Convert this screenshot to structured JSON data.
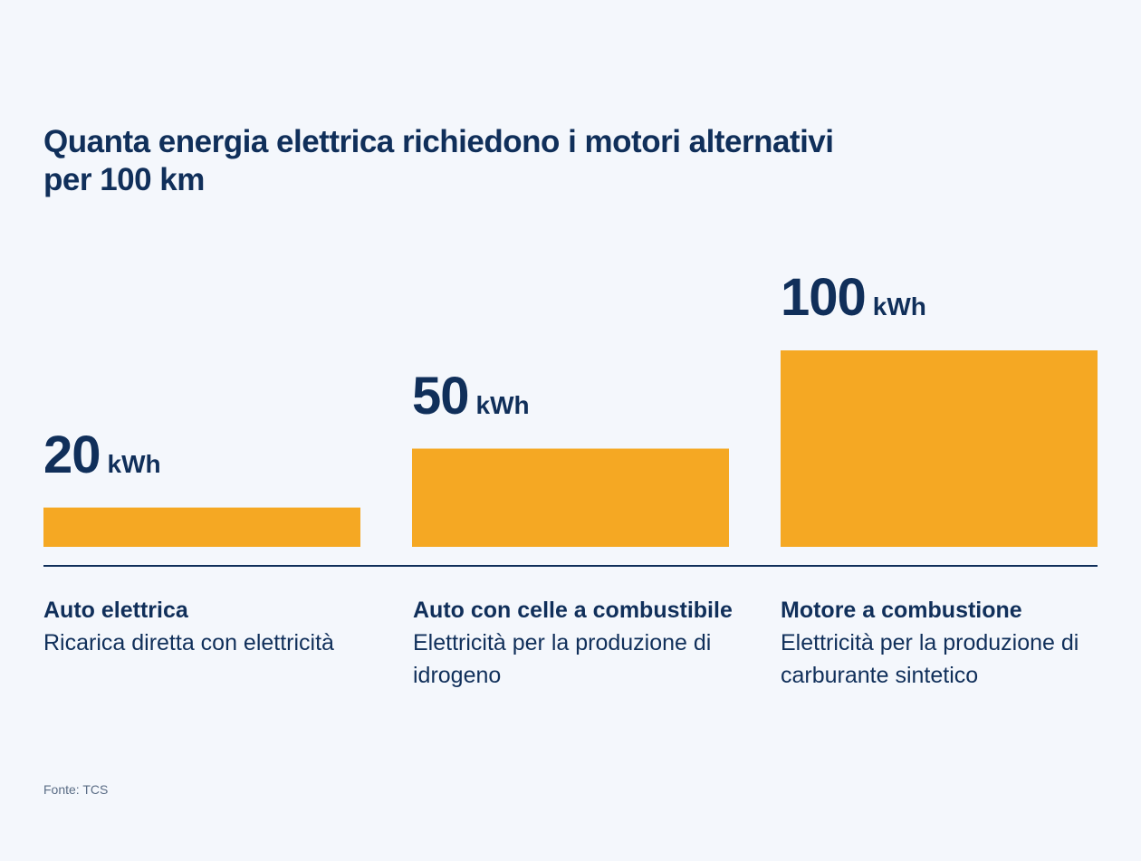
{
  "chart_data": {
    "type": "bar",
    "title": "Quanta energia elettrica richiedono i motori alternativi per 100 km",
    "unit": "kWh",
    "categories": [
      "Auto elettrica",
      "Auto con celle a combustibile",
      "Motore a combustione"
    ],
    "descriptions": [
      "Ricarica diretta con elettricità",
      "Elettricità per la produzione di idrogeno",
      "Elettricità per la produzione di carburante sintetico"
    ],
    "values": [
      20,
      50,
      100
    ],
    "ylim": [
      0,
      100
    ],
    "bar_color": "#f5a823",
    "axis_color": "#102f5a",
    "grid": false,
    "xlabel": "",
    "ylabel": "",
    "source": "Fonte: TCS"
  }
}
